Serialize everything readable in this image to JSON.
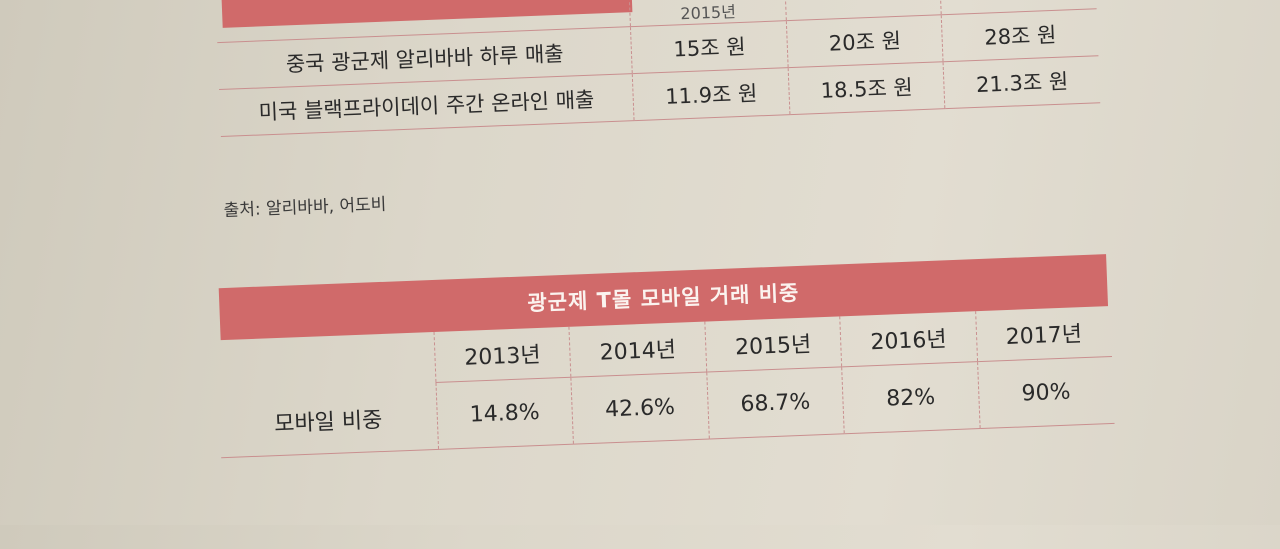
{
  "top_table": {
    "header_partial": "2015년",
    "rows": [
      {
        "label": "중국 광군제 알리바바 하루 매출",
        "values": [
          "15조 원",
          "20조 원",
          "28조 원"
        ]
      },
      {
        "label": "미국 블랙프라이데이 주간 온라인 매출",
        "values": [
          "11.9조 원",
          "18.5조 원",
          "21.3조 원"
        ]
      }
    ],
    "source": "출처: 알리바바, 어도비"
  },
  "bottom_table": {
    "title": "광군제 T몰 모바일 거래 비중",
    "years": [
      "2013년",
      "2014년",
      "2015년",
      "2016년",
      "2017년"
    ],
    "row_label": "모바일 비중",
    "values": [
      "14.8%",
      "42.6%",
      "68.7%",
      "82%",
      "90%"
    ]
  },
  "colors": {
    "accent": "#d06a6a",
    "paper": "#dcd7ca",
    "rule": "#c98f8f"
  }
}
